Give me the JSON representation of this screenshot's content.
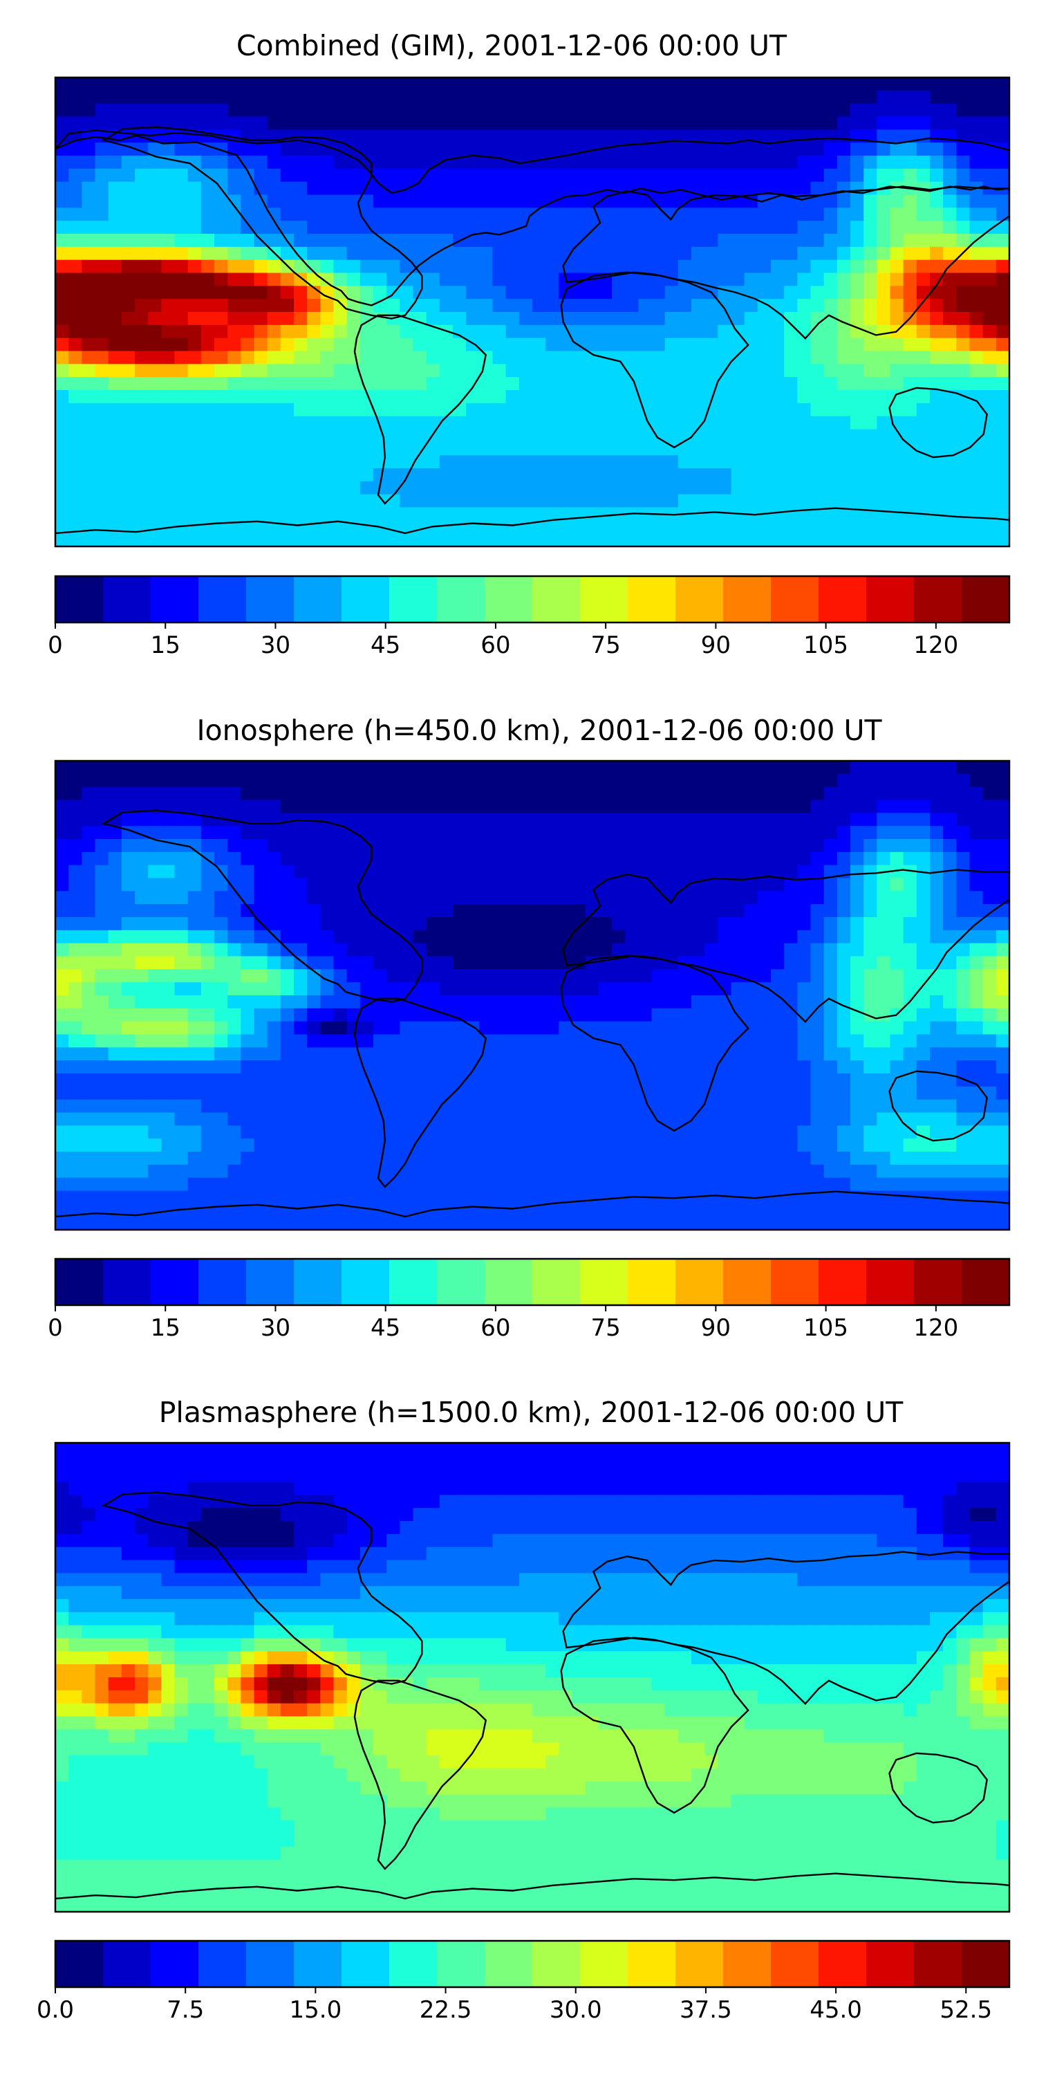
{
  "figure": {
    "panels": [
      {
        "title": "Combined (GIM), 2001-12-06 00:00 UT"
      },
      {
        "title": "Ionosphere  (h=450.0 km), 2001-12-06 00:00 UT"
      },
      {
        "title": "Plasmasphere (h=1500.0 km), 2001-12-06 00:00 UT"
      }
    ]
  },
  "colors": {
    "colormap": [
      "#00007f",
      "#0000c8",
      "#0000ff",
      "#0040ff",
      "#0070ff",
      "#00a4ff",
      "#00d8ff",
      "#1cffd8",
      "#4dffaa",
      "#7cff7a",
      "#aaff4d",
      "#d8ff1c",
      "#ffe600",
      "#ffb400",
      "#ff8000",
      "#ff4a00",
      "#ff1600",
      "#d70000",
      "#a00000",
      "#7f0000"
    ],
    "coastline": "#000000",
    "frame": "#000000"
  },
  "chart_data": [
    {
      "type": "heatmap",
      "title": "Combined (GIM), 2001-12-06 00:00 UT",
      "xlabel": "",
      "ylabel": "",
      "lon_range": [
        -180,
        180
      ],
      "lat_range": [
        -87.5,
        87.5
      ],
      "colorbar": {
        "ticks": [
          "0",
          "15",
          "30",
          "45",
          "60",
          "75",
          "90",
          "105",
          "120"
        ],
        "vmin": 0,
        "vmax": 130,
        "step": 5
      },
      "blobs": [
        {
          "lon": -138,
          "lat": 12,
          "value": 122,
          "sx": 26,
          "sy": 8
        },
        {
          "lon": -138,
          "lat": -12,
          "value": 120,
          "sx": 30,
          "sy": 9
        },
        {
          "lon": -95,
          "lat": 4,
          "value": 100,
          "sx": 18,
          "sy": 8
        },
        {
          "lon": 178,
          "lat": 4,
          "value": 115,
          "sx": 22,
          "sy": 13
        },
        {
          "lon": 148,
          "lat": 10,
          "value": 75,
          "sx": 14,
          "sy": 14
        },
        {
          "lon": 125,
          "lat": -10,
          "value": 60,
          "sx": 18,
          "sy": 20
        },
        {
          "lon": -60,
          "lat": -20,
          "value": 55,
          "sx": 30,
          "sy": 15
        },
        {
          "lon": 30,
          "lat": -30,
          "value": 45,
          "sx": 38,
          "sy": 12
        },
        {
          "lon": -140,
          "lat": 45,
          "value": 45,
          "sx": 25,
          "sy": 13
        },
        {
          "lon": 140,
          "lat": 45,
          "value": 55,
          "sx": 14,
          "sy": 14
        },
        {
          "lon": 0,
          "lat": -60,
          "value": 38,
          "sx": 70,
          "sy": 12
        },
        {
          "lon": 20,
          "lat": 10,
          "value": 18,
          "sx": 30,
          "sy": 12
        }
      ],
      "background": {
        "equator": 40,
        "north": 5,
        "south": 40
      }
    },
    {
      "type": "heatmap",
      "title": "Ionosphere  (h=450.0 km), 2001-12-06 00:00 UT",
      "xlabel": "",
      "ylabel": "",
      "lon_range": [
        -180,
        180
      ],
      "lat_range": [
        -87.5,
        87.5
      ],
      "colorbar": {
        "ticks": [
          "0",
          "15",
          "30",
          "45",
          "60",
          "75",
          "90",
          "105",
          "120"
        ],
        "vmin": 0,
        "vmax": 130,
        "step": 5
      },
      "blobs": [
        {
          "lon": -140,
          "lat": 14,
          "value": 72,
          "sx": 22,
          "sy": 7
        },
        {
          "lon": -140,
          "lat": -12,
          "value": 70,
          "sx": 24,
          "sy": 8
        },
        {
          "lon": -100,
          "lat": 5,
          "value": 55,
          "sx": 14,
          "sy": 6
        },
        {
          "lon": 178,
          "lat": 4,
          "value": 70,
          "sx": 16,
          "sy": 12
        },
        {
          "lon": 130,
          "lat": 0,
          "value": 55,
          "sx": 15,
          "sy": 24
        },
        {
          "lon": 140,
          "lat": 45,
          "value": 45,
          "sx": 14,
          "sy": 15
        },
        {
          "lon": -140,
          "lat": 45,
          "value": 40,
          "sx": 22,
          "sy": 12
        },
        {
          "lon": 150,
          "lat": -55,
          "value": 45,
          "sx": 25,
          "sy": 10
        },
        {
          "lon": -150,
          "lat": -55,
          "value": 40,
          "sx": 25,
          "sy": 10
        },
        {
          "lon": -5,
          "lat": 20,
          "value": 2,
          "sx": 45,
          "sy": 16
        },
        {
          "lon": -75,
          "lat": -12,
          "value": 3,
          "sx": 10,
          "sy": 4
        }
      ],
      "background": {
        "equator": 22,
        "north": 6,
        "south": 22
      }
    },
    {
      "type": "heatmap",
      "title": "Plasmasphere (h=1500.0 km), 2001-12-06 00:00 UT",
      "xlabel": "",
      "ylabel": "",
      "lon_range": [
        -180,
        180
      ],
      "lat_range": [
        -87.5,
        87.5
      ],
      "colorbar": {
        "ticks": [
          "0.0",
          "7.5",
          "15.0",
          "22.5",
          "30.0",
          "37.5",
          "45.0",
          "52.5"
        ],
        "vmin": 0,
        "vmax": 55,
        "step": 2.5
      },
      "blobs": [
        {
          "lon": -92,
          "lat": -3,
          "value": 55,
          "sx": 16,
          "sy": 9
        },
        {
          "lon": -152,
          "lat": -3,
          "value": 45,
          "sx": 12,
          "sy": 10
        },
        {
          "lon": -30,
          "lat": -25,
          "value": 30,
          "sx": 35,
          "sy": 18
        },
        {
          "lon": 45,
          "lat": -30,
          "value": 28,
          "sx": 40,
          "sy": 15
        },
        {
          "lon": 178,
          "lat": 0,
          "value": 35,
          "sx": 12,
          "sy": 12
        },
        {
          "lon": 130,
          "lat": -35,
          "value": 25,
          "sx": 30,
          "sy": 15
        },
        {
          "lon": -110,
          "lat": 55,
          "value": 1,
          "sx": 35,
          "sy": 12
        },
        {
          "lon": 170,
          "lat": 60,
          "value": 3,
          "sx": 15,
          "sy": 10
        }
      ],
      "background": {
        "equator": 20,
        "north": 8,
        "south": 22
      }
    }
  ]
}
